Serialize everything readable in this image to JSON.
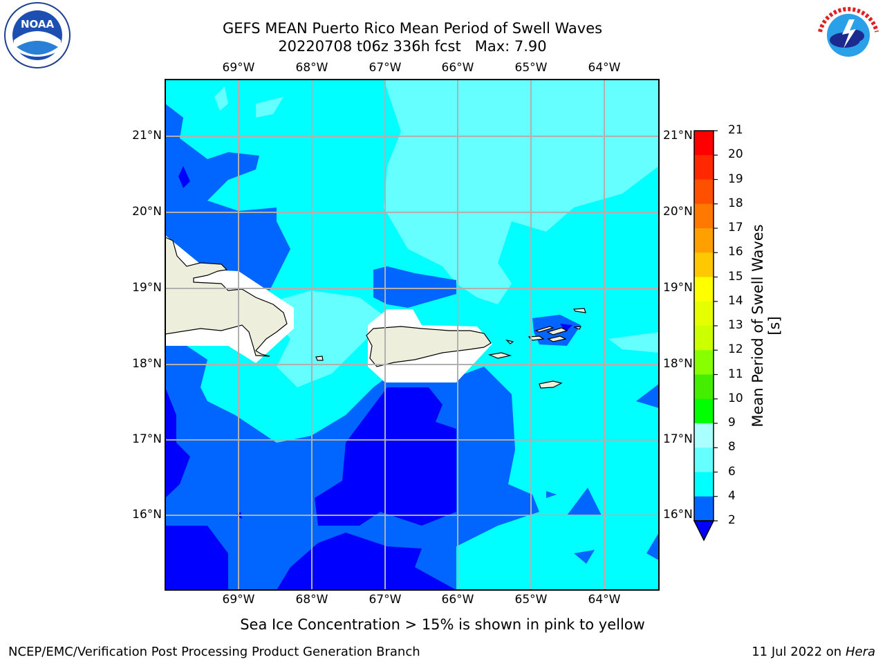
{
  "header": {
    "title_line1": "GEFS MEAN Puerto Rico Mean Period of Swell Waves",
    "title_line2": "20220708 t06z 336h fcst   Max: 7.90"
  },
  "logos": {
    "left_icon": "noaa-logo-icon",
    "left_text": "NOAA",
    "right_icon": "nws-logo-icon",
    "right_text": "NATIONAL WEATHER SERVICE"
  },
  "map": {
    "lon_labels": [
      "69°W",
      "68°W",
      "67°W",
      "66°W",
      "65°W",
      "64°W"
    ],
    "lat_labels": [
      "21°N",
      "20°N",
      "19°N",
      "18°N",
      "17°N",
      "16°N"
    ],
    "colors": {
      "land": "#eeeedd",
      "ice_mask": "#ffffff",
      "grid": "#b0b0b0",
      "band_2_4": "#0000ff",
      "band_4_6": "#0066ff",
      "band_6_8": "#00ffff",
      "band_8_9": "#66ffff"
    }
  },
  "colorbar": {
    "label": "Mean Period of Swell Waves [s]",
    "ticks": [
      "21",
      "20",
      "19",
      "18",
      "17",
      "16",
      "15",
      "14",
      "13",
      "12",
      "11",
      "10",
      "9",
      "8",
      "6",
      "4",
      "2"
    ],
    "colors": [
      "#ff0000",
      "#ff2800",
      "#ff5000",
      "#ff7800",
      "#ffa000",
      "#ffc800",
      "#ffff00",
      "#e6ff00",
      "#ccff00",
      "#aaff00",
      "#66ff33",
      "#00ff00",
      "#00cc00",
      "#66ff88",
      "#aaffff",
      "#66ffff",
      "#00ffff",
      "#0066ff",
      "#0000ff"
    ]
  },
  "chart_data": {
    "type": "heatmap",
    "title": "GEFS MEAN Puerto Rico Mean Period of Swell Waves",
    "subtitle": "20220708 t06z 336h fcst   Max: 7.90",
    "variable": "Mean Period of Swell Waves [s]",
    "max": 7.9,
    "lon_range": [
      -70,
      -63.3
    ],
    "lat_range": [
      15,
      21.75
    ],
    "colorbar_levels": [
      2,
      4,
      6,
      8,
      9,
      10,
      11,
      12,
      13,
      14,
      15,
      16,
      17,
      18,
      19,
      20,
      21
    ]
  },
  "note": "Sea Ice Concentration > 15% is shown in pink to yellow",
  "footer": {
    "left": "NCEP/EMC/Verification Post Processing Product Generation Branch",
    "right_date": "11 Jul 2022 on ",
    "right_host": "Hera"
  }
}
